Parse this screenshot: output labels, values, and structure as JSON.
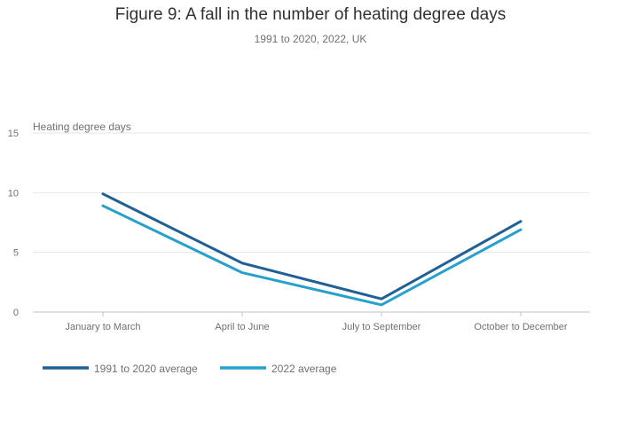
{
  "title": "Figure 9: A fall in the number of heating degree days",
  "subtitle": "1991 to 2020, 2022, UK",
  "chart_data": {
    "type": "line",
    "title": "Figure 9: A fall in the number of heating degree days",
    "subtitle": "1991 to 2020, 2022, UK",
    "ylabel": "Heating degree days",
    "xlabel": "",
    "categories": [
      "January to March",
      "April to June",
      "July to September",
      "October to December"
    ],
    "ylim": [
      0,
      15
    ],
    "yticks": [
      0,
      5,
      10,
      15
    ],
    "grid": true,
    "legend_position": "bottom-left",
    "series": [
      {
        "name": "1991 to 2020 average",
        "color": "#206095",
        "values": [
          9.9,
          4.1,
          1.1,
          7.6
        ]
      },
      {
        "name": "2022 average",
        "color": "#27a0cc",
        "values": [
          8.9,
          3.3,
          0.6,
          6.9
        ]
      }
    ]
  }
}
